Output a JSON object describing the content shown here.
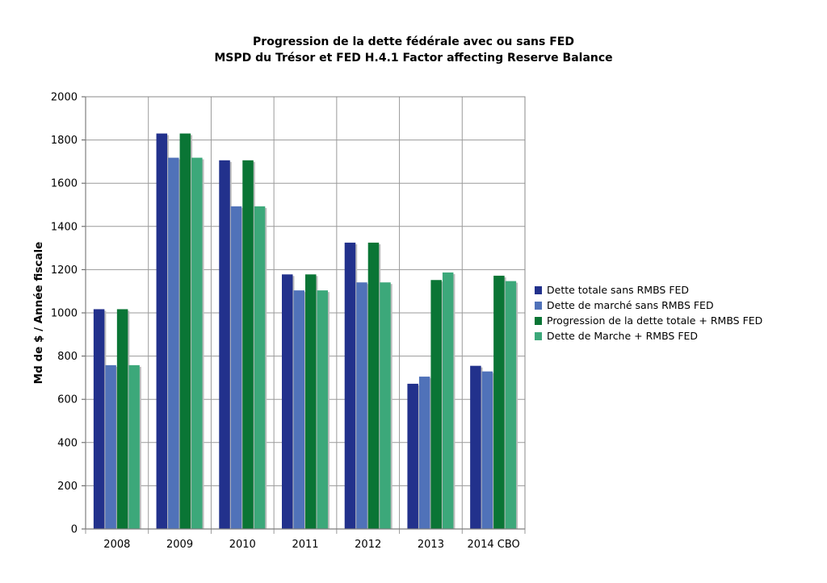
{
  "title_line1": "Progression de la dette fédérale avec ou sans FED",
  "title_line2": "MSPD du Trésor et FED H.4.1 Factor affecting Reserve Balance",
  "chart_data": {
    "type": "bar",
    "title": "Progression de la dette fédérale avec ou sans FED / MSPD du Trésor et FED H.4.1 Factor affecting Reserve Balance",
    "xlabel": "",
    "ylabel": "Md de $ / Année fiscale",
    "categories": [
      "2008",
      "2009",
      "2010",
      "2011",
      "2012",
      "2013",
      "2014 CBO"
    ],
    "ylim": [
      0,
      2000
    ],
    "yticks": [
      0,
      200,
      400,
      600,
      800,
      1000,
      1200,
      1400,
      1600,
      1800,
      2000
    ],
    "grid": true,
    "legend_position": "right",
    "series": [
      {
        "name": "Dette totale sans RMBS FED",
        "color": "#22318c",
        "values": [
          1017,
          1830,
          1706,
          1178,
          1325,
          672,
          755
        ]
      },
      {
        "name": "Dette de marché sans RMBS FED",
        "color": "#5072b9",
        "values": [
          758,
          1718,
          1493,
          1104,
          1141,
          705,
          729
        ]
      },
      {
        "name": "Progression de la dette totale + RMBS FED",
        "color": "#0a7535",
        "values": [
          1017,
          1830,
          1706,
          1178,
          1325,
          1152,
          1172
        ]
      },
      {
        "name": "Dette de Marche + RMBS FED",
        "color": "#3ca87a",
        "values": [
          758,
          1718,
          1493,
          1104,
          1141,
          1187,
          1147
        ]
      }
    ]
  }
}
